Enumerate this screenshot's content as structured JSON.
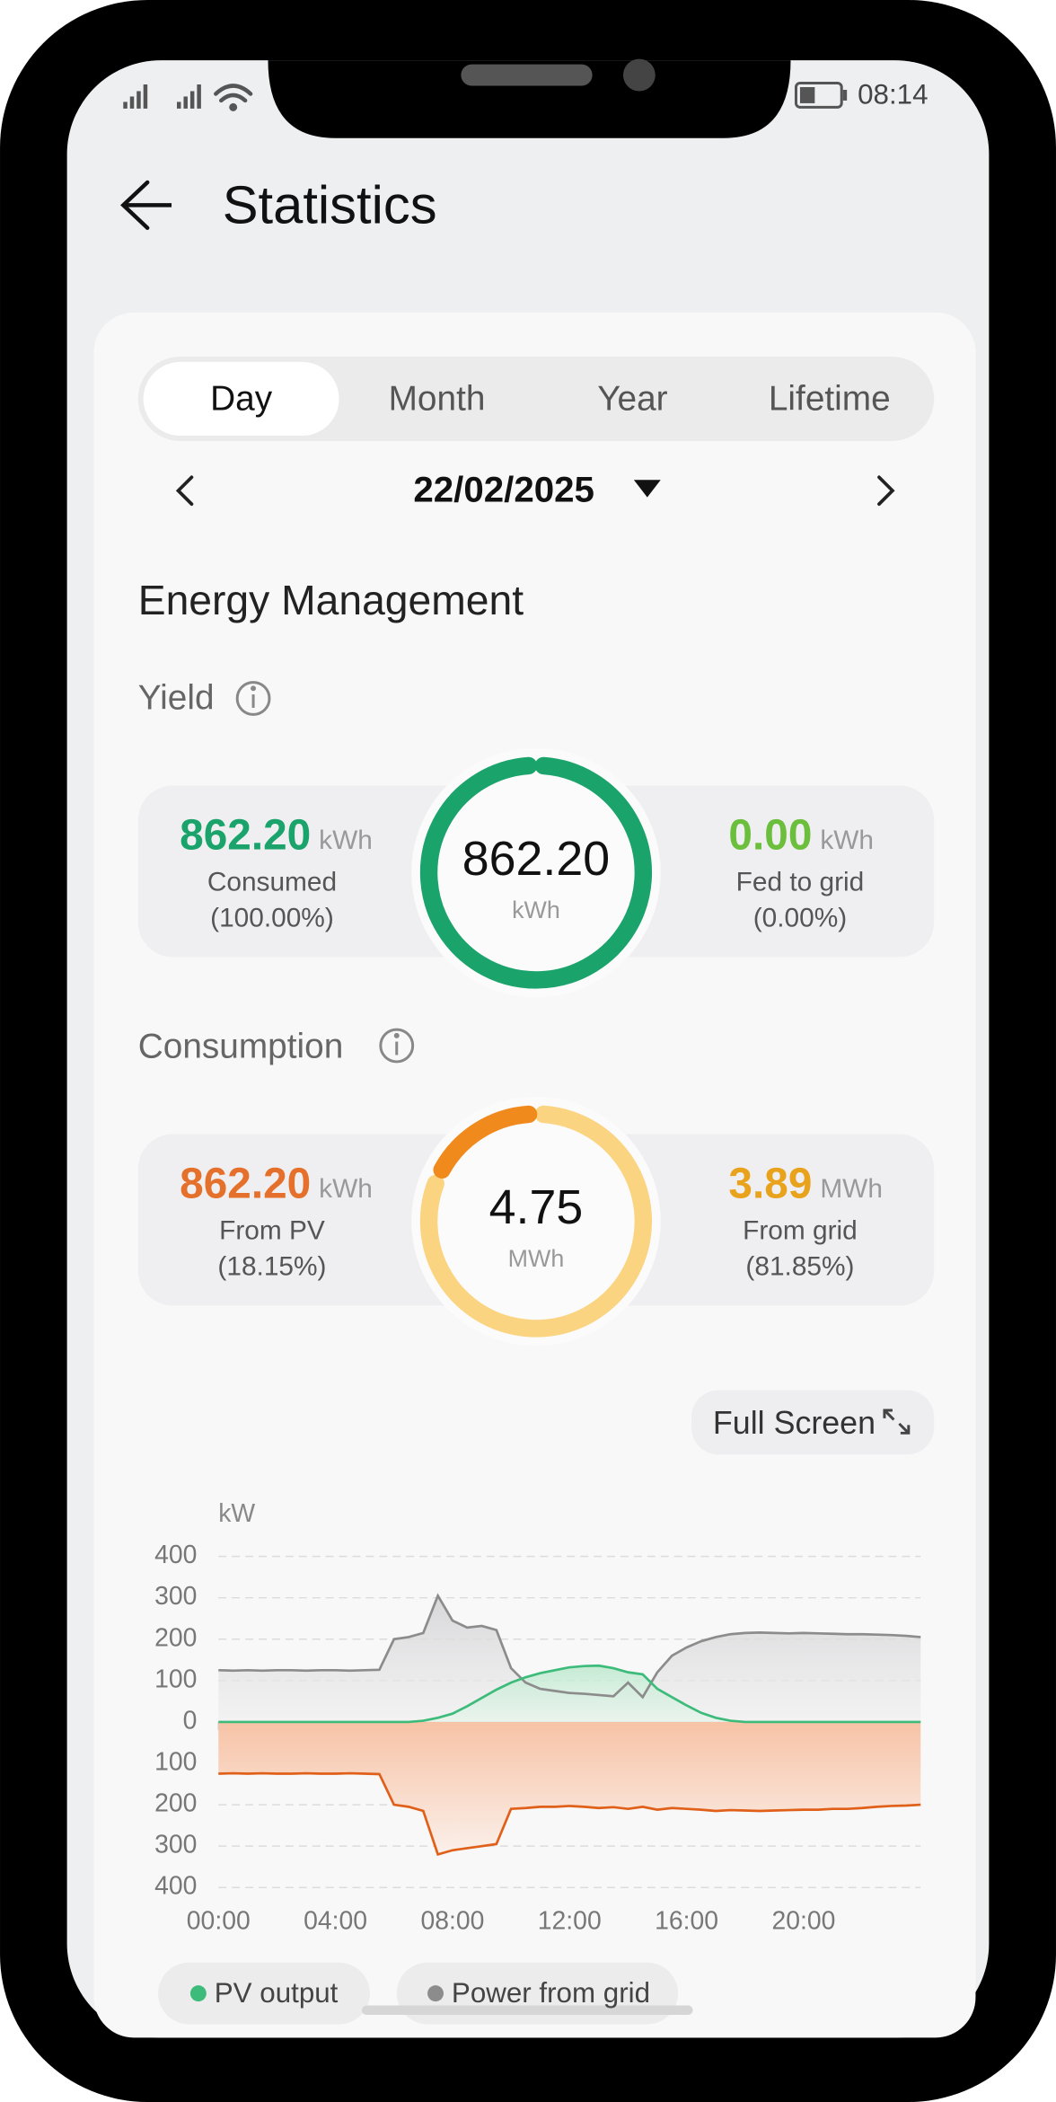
{
  "status_bar": {
    "time": "08:14"
  },
  "header": {
    "title": "Statistics"
  },
  "tabs": [
    "Day",
    "Month",
    "Year",
    "Lifetime"
  ],
  "date": "22/02/2025",
  "section_title": "Energy Management",
  "yield": {
    "label": "Yield",
    "total": "862.20",
    "total_unit": "kWh",
    "left": {
      "value": "862.20",
      "unit": "kWh",
      "label": "Consumed",
      "percent": {
        "value": 100,
        "label": "(100.00%)"
      },
      "color": "#1aa36b"
    },
    "right": {
      "value": "0.00",
      "unit": "kWh",
      "label": "Fed to grid",
      "percent": {
        "value": 0,
        "label": "(0.00%)"
      },
      "color": "#6cbf3c"
    }
  },
  "consumption": {
    "label": "Consumption",
    "total": "4.75",
    "total_unit": "MWh",
    "left": {
      "value": "862.20",
      "unit": "kWh",
      "label": "From PV",
      "percent": {
        "value": 18.15,
        "label": "(18.15%)"
      },
      "color": "#f18a1c"
    },
    "right": {
      "value": "3.89",
      "unit": "MWh",
      "label": "From grid",
      "percent": {
        "value": 81.85,
        "label": "(81.85%)"
      },
      "color": "#fbd481"
    }
  },
  "full_screen": "Full Screen",
  "chart_data": {
    "type": "line",
    "y_label": "kW",
    "x": [
      0,
      0.5,
      1,
      1.5,
      2,
      2.5,
      3,
      3.5,
      4,
      4.5,
      5,
      5.5,
      6,
      6.5,
      7,
      7.5,
      8,
      8.5,
      9,
      9.5,
      10,
      10.5,
      11,
      11.5,
      12,
      12.5,
      13,
      13.5,
      14,
      14.5,
      15,
      15.5,
      16,
      16.5,
      17,
      17.5,
      18,
      18.5,
      19,
      19.5,
      20,
      20.5,
      21,
      21.5,
      22,
      22.5,
      23,
      23.5,
      24
    ],
    "xlim": [
      0,
      24
    ],
    "xticks": [
      {
        "value": 0,
        "label": "00:00"
      },
      {
        "value": 4,
        "label": "04:00"
      },
      {
        "value": 8,
        "label": "08:00"
      },
      {
        "value": 12,
        "label": "12:00"
      },
      {
        "value": 16,
        "label": "16:00"
      },
      {
        "value": 20,
        "label": "20:00"
      }
    ],
    "ylim": [
      -400,
      400
    ],
    "yticks": [
      400,
      300,
      200,
      100,
      0,
      {
        "value": -100,
        "label": "100"
      },
      {
        "value": -200,
        "label": "200"
      },
      {
        "value": -300,
        "label": "300"
      },
      {
        "value": -400,
        "label": "400"
      }
    ],
    "grid": true,
    "series": [
      {
        "name": "PV output",
        "color": "#3dbb7a",
        "values": [
          0,
          0,
          0,
          0,
          0,
          0,
          0,
          0,
          0,
          0,
          0,
          0,
          0,
          0,
          3,
          10,
          20,
          38,
          58,
          78,
          95,
          108,
          118,
          125,
          132,
          135,
          136,
          130,
          120,
          115,
          80,
          60,
          40,
          22,
          10,
          3,
          0,
          0,
          0,
          0,
          0,
          0,
          0,
          0,
          0,
          0,
          0,
          0,
          0
        ]
      },
      {
        "name": "Power from grid",
        "color": "#8c8c8c",
        "values": [
          125,
          124,
          125,
          124,
          125,
          125,
          124,
          125,
          125,
          124,
          125,
          126,
          200,
          205,
          215,
          305,
          245,
          228,
          232,
          222,
          130,
          95,
          80,
          75,
          70,
          68,
          65,
          62,
          95,
          60,
          120,
          160,
          180,
          195,
          205,
          212,
          215,
          216,
          215,
          214,
          215,
          214,
          213,
          212,
          212,
          211,
          210,
          208,
          205
        ]
      },
      {
        "color": "#e0601a",
        "values": [
          -125,
          -124,
          -125,
          -124,
          -125,
          -125,
          -124,
          -125,
          -125,
          -124,
          -125,
          -126,
          -200,
          -205,
          -215,
          -320,
          -310,
          -305,
          -300,
          -295,
          -210,
          -208,
          -205,
          -205,
          -203,
          -205,
          -208,
          -206,
          -210,
          -205,
          -212,
          -208,
          -210,
          -212,
          -215,
          -213,
          -214,
          -215,
          -214,
          -213,
          -212,
          -212,
          -210,
          -210,
          -208,
          -205,
          -203,
          -202,
          -200
        ]
      }
    ]
  }
}
